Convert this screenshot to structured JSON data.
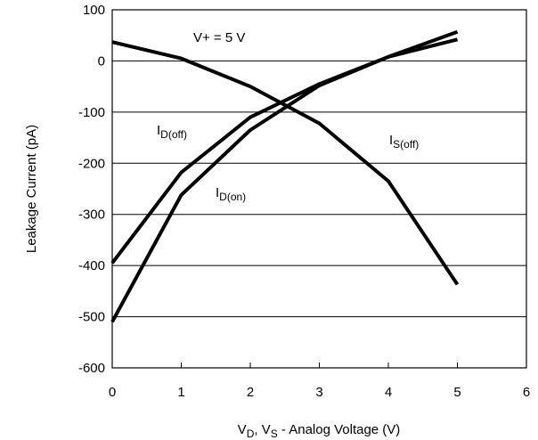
{
  "chart_data": {
    "type": "line",
    "xlabel_parts": [
      {
        "text": "V",
        "sub": false
      },
      {
        "text": "D",
        "sub": true
      },
      {
        "text": ", V",
        "sub": false
      },
      {
        "text": "S",
        "sub": true
      },
      {
        "text": " - Analog Voltage (V)",
        "sub": false
      }
    ],
    "ylabel": "Leakage Current (pA)",
    "xlim": [
      0,
      6
    ],
    "ylim": [
      -600,
      100
    ],
    "xticks": [
      0,
      1,
      2,
      3,
      4,
      5,
      6
    ],
    "yticks": [
      100,
      0,
      -100,
      -200,
      -300,
      -400,
      -500,
      -600
    ],
    "grid": "horizontal",
    "condition_label": "V+ = 5 V",
    "series": [
      {
        "label_main": "I",
        "label_sub": "D(off)",
        "x": [
          0,
          1,
          2,
          3,
          4,
          5
        ],
        "y": [
          -395,
          -218,
          -110,
          -45,
          8,
          42
        ]
      },
      {
        "label_main": "I",
        "label_sub": "D(on)",
        "x": [
          0,
          1,
          2,
          3,
          4,
          5
        ],
        "y": [
          -510,
          -262,
          -135,
          -48,
          8,
          57
        ]
      },
      {
        "label_main": "I",
        "label_sub": "S(off)",
        "x": [
          0,
          1,
          2,
          3,
          4,
          5
        ],
        "y": [
          37,
          5,
          -50,
          -122,
          -235,
          -437
        ]
      }
    ]
  }
}
